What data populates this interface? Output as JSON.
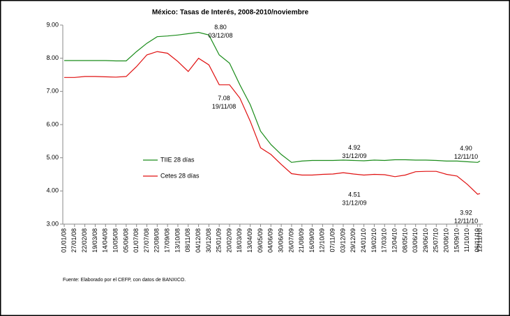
{
  "chart_data": {
    "type": "line",
    "title": "México: Tasas de Interés, 2008-2010/noviembre",
    "source": "Fuente: Elaborado por el CEFP, con datos de BANXICO.",
    "x": [
      "01/01/08",
      "27/01/08",
      "22/02/08",
      "19/03/08",
      "14/04/08",
      "10/05/08",
      "05/06/08",
      "01/07/08",
      "27/07/08",
      "22/08/08",
      "17/09/08",
      "13/10/08",
      "08/11/08",
      "04/12/08",
      "30/12/08",
      "25/01/09",
      "20/02/09",
      "18/03/09",
      "13/04/09",
      "09/05/09",
      "04/06/09",
      "30/06/09",
      "26/07/09",
      "21/08/09",
      "16/09/09",
      "12/10/09",
      "07/11/09",
      "03/12/09",
      "29/12/09",
      "24/01/10",
      "19/02/10",
      "17/03/10",
      "12/04/10",
      "08/05/10",
      "03/06/10",
      "29/06/10",
      "25/07/10",
      "20/08/10",
      "15/09/10",
      "11/10/10",
      "06/11/10",
      "12/11/10"
    ],
    "series": [
      {
        "name": "TIIE 28 días",
        "color": "#1a8c1a",
        "values": [
          7.93,
          7.93,
          7.93,
          7.93,
          7.93,
          7.92,
          7.92,
          8.2,
          8.45,
          8.65,
          8.67,
          8.7,
          8.74,
          8.78,
          8.7,
          8.1,
          7.85,
          7.2,
          6.6,
          5.8,
          5.4,
          5.1,
          4.86,
          4.9,
          4.92,
          4.92,
          4.92,
          4.93,
          4.92,
          4.91,
          4.93,
          4.92,
          4.94,
          4.94,
          4.93,
          4.93,
          4.92,
          4.9,
          4.9,
          4.88,
          4.86,
          4.9
        ]
      },
      {
        "name": "Cetes 28 días",
        "color": "#e01010",
        "values": [
          7.42,
          7.42,
          7.45,
          7.45,
          7.44,
          7.43,
          7.45,
          7.75,
          8.1,
          8.2,
          8.15,
          7.9,
          7.6,
          8.0,
          7.8,
          7.2,
          7.2,
          6.8,
          6.1,
          5.3,
          5.1,
          4.8,
          4.52,
          4.48,
          4.48,
          4.5,
          4.51,
          4.55,
          4.51,
          4.48,
          4.5,
          4.49,
          4.43,
          4.48,
          4.58,
          4.59,
          4.59,
          4.5,
          4.45,
          4.2,
          3.9,
          3.92
        ]
      }
    ],
    "annotations": [
      {
        "value": 8.8,
        "label": "8.80",
        "date": "03/12/08"
      },
      {
        "value": 7.08,
        "label": "7.08",
        "date": "19/11/08"
      },
      {
        "value": 4.92,
        "label": "4.92",
        "date": "31/12/09"
      },
      {
        "value": 4.51,
        "label": "4.51",
        "date": "31/12/09"
      },
      {
        "value": 4.9,
        "label": "4.90",
        "date": "12/11/10"
      },
      {
        "value": 3.92,
        "label": "3.92",
        "date": "12/11/10"
      }
    ],
    "ylim": [
      3,
      9
    ],
    "yticks": [
      {
        "value": 3,
        "label": "3.00"
      },
      {
        "value": 4,
        "label": "4.00"
      },
      {
        "value": 5,
        "label": "5.00"
      },
      {
        "value": 6,
        "label": "6.00"
      },
      {
        "value": 7,
        "label": "7.00"
      },
      {
        "value": 8,
        "label": "8.00"
      },
      {
        "value": 9,
        "label": "9.00"
      }
    ],
    "grid": false
  }
}
